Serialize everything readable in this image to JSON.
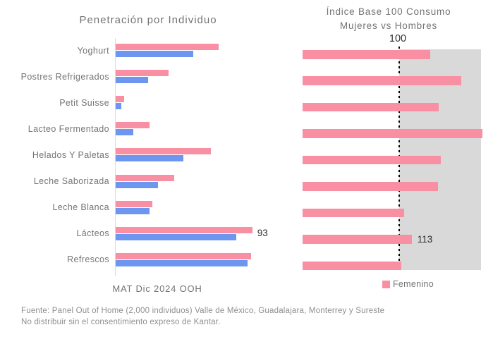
{
  "colors": {
    "pink": "#F98FA3",
    "blue": "#6C96EF",
    "shade": "#D9D9D9",
    "axis_line": "#DCDCDC",
    "title_text": "#737373",
    "label_text": "#757575",
    "value_text": "#2E2E2E",
    "footer_text": "#8F8F8F",
    "dotted_line": "#000000"
  },
  "chart_data": [
    {
      "type": "bar",
      "orientation": "horizontal",
      "title": "Penetración por Individuo",
      "x_axis_label": "MAT Dic 2024 OOH",
      "xlim": [
        0,
        100
      ],
      "grid": false,
      "categories": [
        "Yoghurt",
        "Postres Refrigerados",
        "Petit Suisse",
        "Lacteo Fermentado",
        "Helados Y Paletas",
        "Leche Saborizada",
        "Leche Blanca",
        "Lácteos",
        "Refrescos"
      ],
      "series": [
        {
          "name": "serie-rosa",
          "color": "#F98FA3",
          "values": [
            70,
            36,
            6,
            23,
            65,
            40,
            25,
            93,
            92
          ]
        },
        {
          "name": "serie-azul",
          "color": "#6C96EF",
          "values": [
            53,
            22,
            4,
            12,
            46,
            29,
            23,
            82,
            90
          ]
        }
      ],
      "data_labels": [
        {
          "category": "Lácteos",
          "series": 0,
          "text": "93"
        }
      ]
    },
    {
      "type": "bar",
      "orientation": "horizontal",
      "title_line1": "Índice Base 100 Consumo",
      "title_line2": "Mujeres vs Hombres",
      "xlim": [
        0,
        190
      ],
      "grid": false,
      "shaded_region": "values above 100",
      "reference_line": {
        "value": 100,
        "label": "100",
        "style": "dotted"
      },
      "categories": [
        "Yoghurt",
        "Postres Refrigerados",
        "Petit Suisse",
        "Lacteo Fermentado",
        "Helados Y Paletas",
        "Leche Saborizada",
        "Leche Blanca",
        "Lácteos",
        "Refrescos"
      ],
      "series": [
        {
          "name": "Femenino",
          "color": "#F98FA3",
          "values": [
            132,
            164,
            141,
            186,
            143,
            140,
            105,
            113,
            102
          ]
        }
      ],
      "data_labels": [
        {
          "category": "Lácteos",
          "series": 0,
          "text": "113"
        }
      ],
      "legend": {
        "label": "Femenino",
        "position": "bottom"
      }
    }
  ],
  "footer": {
    "line1": "Fuente: Panel Out of Home (2,000 individuos) Valle de México, Guadalajara, Monterrey y Sureste",
    "line2": "No distribuir sin el consentimiento expreso de Kantar."
  }
}
